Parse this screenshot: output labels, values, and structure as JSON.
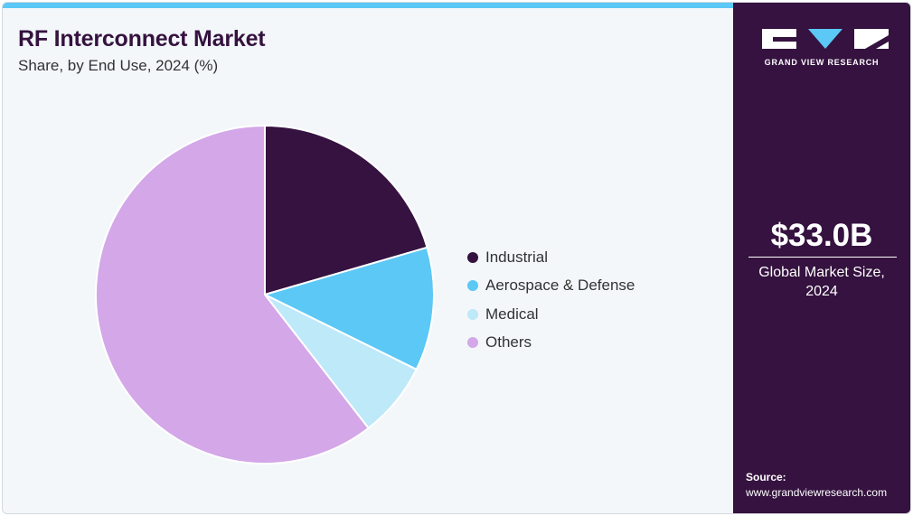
{
  "header": {
    "title": "RF Interconnect Market",
    "subtitle": "Share, by End Use, 2024 (%)"
  },
  "sidebar": {
    "brand": "GRAND VIEW RESEARCH",
    "market_value": "$33.0B",
    "market_label_line1": "Global Market Size,",
    "market_label_line2": "2024",
    "source_label": "Source:",
    "source_url": "www.grandviewresearch.com"
  },
  "colors": {
    "brand_dark": "#35123f",
    "accent": "#5bc8f5"
  },
  "chart_data": {
    "type": "pie",
    "title": "RF Interconnect Market",
    "subtitle": "Share, by End Use, 2024 (%)",
    "legend_position": "right",
    "slices": [
      {
        "label": "Industrial",
        "value": 20.5,
        "color": "#35123f"
      },
      {
        "label": "Aerospace & Defense",
        "value": 11.8,
        "color": "#5bc8f5"
      },
      {
        "label": "Medical",
        "value": 7.2,
        "color": "#bde9f9"
      },
      {
        "label": "Others",
        "value": 60.5,
        "color": "#d3a7e8"
      }
    ]
  }
}
